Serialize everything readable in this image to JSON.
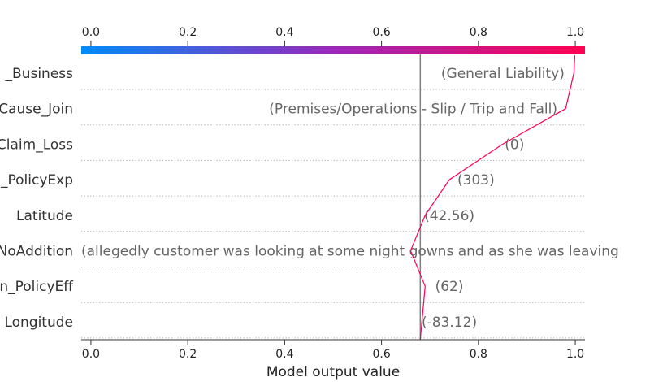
{
  "chart_data": {
    "type": "line",
    "plot_kind": "shap-decision-plot",
    "xlabel": "Model output value",
    "xlim": [
      -0.02,
      1.02
    ],
    "xticks": [
      "0.0",
      "0.2",
      "0.4",
      "0.6",
      "0.8",
      "1.0"
    ],
    "colorbar_ticks": [
      "0.0",
      "0.2",
      "0.4",
      "0.6",
      "0.8",
      "1.0"
    ],
    "colormap": [
      "#008bfb",
      "#9a28b8",
      "#ff0052"
    ],
    "base_value": 0.68,
    "line_color": "#ff0052",
    "grid": "dotted-horizontal",
    "features": [
      {
        "name": "_Business",
        "value_label": "(General Liability)"
      },
      {
        "name": "Cause_Join",
        "value_label": "(Premises/Operations - Slip / Trip and Fall)"
      },
      {
        "name": "Claim_Loss",
        "value_label": "(0)"
      },
      {
        "name": "_PolicyExp",
        "value_label": "(303)"
      },
      {
        "name": "Latitude",
        "value_label": "(42.56)"
      },
      {
        "name": "NoAddition",
        "value_label": "(allegedly customer was looking at some night gowns and as she was leaving"
      },
      {
        "name": "n_PolicyEff",
        "value_label": "(62)"
      },
      {
        "name": "Longitude",
        "value_label": "(-83.12)"
      }
    ],
    "path": [
      {
        "x": 0.999,
        "row": -0.5
      },
      {
        "x": 0.997,
        "row": 0
      },
      {
        "x": 0.98,
        "row": 1
      },
      {
        "x": 0.85,
        "row": 2
      },
      {
        "x": 0.74,
        "row": 3
      },
      {
        "x": 0.69,
        "row": 4
      },
      {
        "x": 0.66,
        "row": 5
      },
      {
        "x": 0.69,
        "row": 6
      },
      {
        "x": 0.68,
        "row": 7.5
      }
    ]
  }
}
